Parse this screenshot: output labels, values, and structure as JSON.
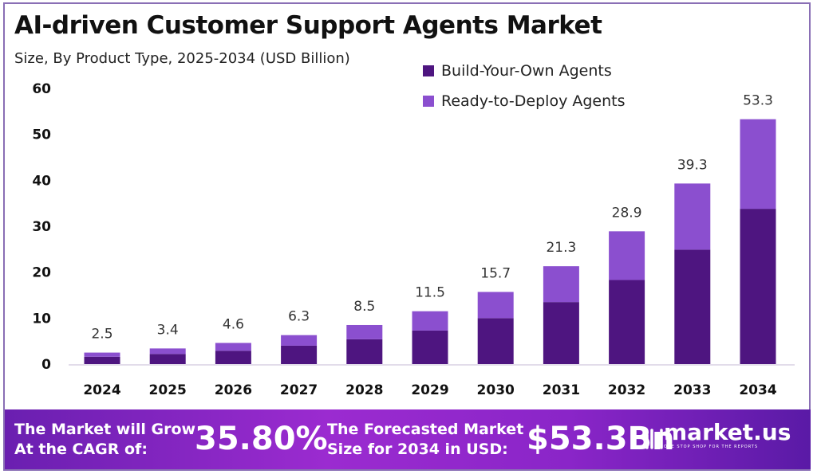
{
  "chart_data": {
    "type": "bar",
    "stacked": true,
    "title": "AI-driven Customer Support Agents Market",
    "subtitle": "Size, By Product Type, 2025-2034 (USD Billion)",
    "xlabel": "",
    "ylabel": "",
    "categories": [
      "2024",
      "2025",
      "2026",
      "2027",
      "2028",
      "2029",
      "2030",
      "2031",
      "2032",
      "2033",
      "2034"
    ],
    "totals": [
      2.5,
      3.4,
      4.6,
      6.3,
      8.5,
      11.5,
      15.7,
      21.3,
      28.9,
      39.3,
      53.3
    ],
    "total_labels": [
      "2.5",
      "3.4",
      "4.6",
      "6.3",
      "8.5",
      "11.5",
      "15.7",
      "21.3",
      "28.9",
      "39.3",
      "53.3"
    ],
    "series": [
      {
        "name": "Build-Your-Own Agents",
        "color": "#4e1580",
        "values": [
          1.6,
          2.2,
          2.9,
          4.0,
          5.4,
          7.3,
          10.0,
          13.5,
          18.3,
          24.9,
          33.8
        ]
      },
      {
        "name": "Ready-to-Deploy Agents",
        "color": "#8b4fcf",
        "values": [
          0.9,
          1.2,
          1.7,
          2.3,
          3.1,
          4.2,
          5.7,
          7.8,
          10.6,
          14.4,
          19.5
        ]
      }
    ],
    "ylim": [
      0,
      60
    ],
    "yticks": [
      "0",
      "10",
      "20",
      "30",
      "40",
      "50",
      "60"
    ],
    "grid": false,
    "legend_position": "top-right"
  },
  "footer": {
    "cagr_label_line1": "The Market will Grow",
    "cagr_label_line2": "At the CAGR of:",
    "cagr_value": "35.80%",
    "forecast_label_line1": "The Forecasted Market",
    "forecast_label_line2": "Size for 2034 in USD:",
    "forecast_value": "$53.3Bn",
    "brand": "market.us",
    "brand_tagline": "ONE STOP SHOP FOR THE REPORTS"
  }
}
